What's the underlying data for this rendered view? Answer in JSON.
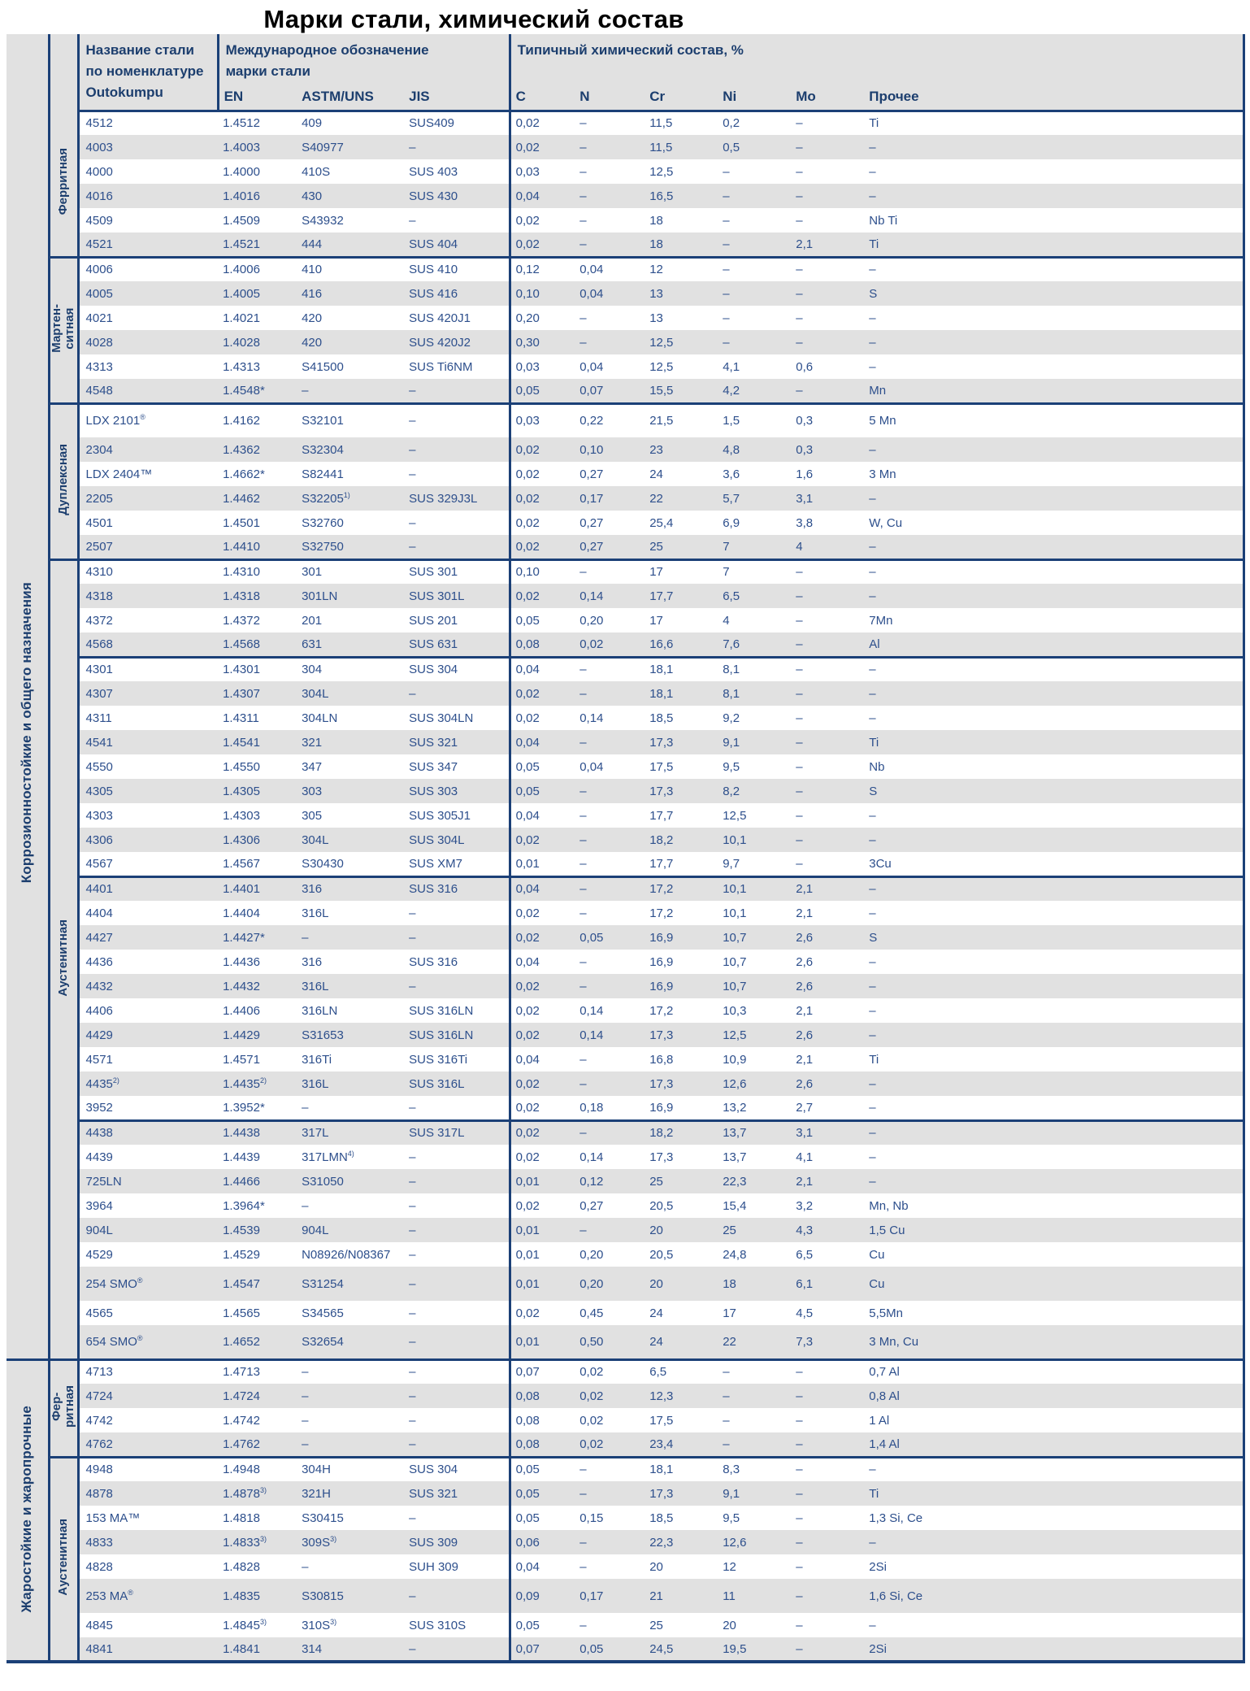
{
  "title": "Марки стали, химический состав",
  "header": {
    "name_l1": "Название стали",
    "name_l2": "по номенклатуре",
    "name_l3": "Outokumpu",
    "intl_l1": "Международное обозначение",
    "intl_l2": "марки стали",
    "chem_title": "Типичный химический состав, %",
    "cols": {
      "en": "EN",
      "astm": "ASTM/UNS",
      "jis": "JIS",
      "c": "C",
      "n": "N",
      "cr": "Cr",
      "ni": "Ni",
      "mo": "Mo",
      "other": "Прочее"
    }
  },
  "groups": [
    {
      "label": "Коррозионностойкие и общего назначения",
      "subgroups": [
        {
          "label": "Ферритная",
          "blocks": [
            [
              [
                "4512",
                "1.4512",
                "409",
                "SUS409",
                "0,02",
                "–",
                "11,5",
                "0,2",
                "–",
                "Ti"
              ],
              [
                "4003",
                "1.4003",
                "S40977",
                "–",
                "0,02",
                "–",
                "11,5",
                "0,5",
                "–",
                "–"
              ],
              [
                "4000",
                "1.4000",
                "410S",
                "SUS 403",
                "0,03",
                "–",
                "12,5",
                "–",
                "–",
                "–"
              ],
              [
                "4016",
                "1.4016",
                "430",
                "SUS 430",
                "0,04",
                "–",
                "16,5",
                "–",
                "–",
                "–"
              ],
              [
                "4509",
                "1.4509",
                "S43932",
                "–",
                "0,02",
                "–",
                "18",
                "–",
                "–",
                "Nb Ti"
              ],
              [
                "4521",
                "1.4521",
                "444",
                "SUS 404",
                "0,02",
                "–",
                "18",
                "–",
                "2,1",
                "Ti"
              ]
            ]
          ]
        },
        {
          "label": "Мартен-\nситная",
          "blocks": [
            [
              [
                "4006",
                "1.4006",
                "410",
                "SUS 410",
                "0,12",
                "0,04",
                "12",
                "–",
                "–",
                "–"
              ],
              [
                "4005",
                "1.4005",
                "416",
                "SUS 416",
                "0,10",
                "0,04",
                "13",
                "–",
                "–",
                "S"
              ],
              [
                "4021",
                "1.4021",
                "420",
                "SUS 420J1",
                "0,20",
                "–",
                "13",
                "–",
                "–",
                "–"
              ],
              [
                "4028",
                "1.4028",
                "420",
                "SUS 420J2",
                "0,30",
                "–",
                "12,5",
                "–",
                "–",
                "–"
              ],
              [
                "4313",
                "1.4313",
                "S41500",
                "SUS Ti6NM",
                "0,03",
                "0,04",
                "12,5",
                "4,1",
                "0,6",
                "–"
              ],
              [
                "4548",
                "1.4548*",
                "–",
                "–",
                "0,05",
                "0,07",
                "15,5",
                "4,2",
                "–",
                "Mn"
              ]
            ]
          ]
        },
        {
          "label": "Дуплексная",
          "blocks": [
            [
              [
                "LDX 2101|®",
                "1.4162",
                "S32101",
                "–",
                "0,03",
                "0,22",
                "21,5",
                "1,5",
                "0,3",
                "5 Mn"
              ],
              [
                "2304",
                "1.4362",
                "S32304",
                "–",
                "0,02",
                "0,10",
                "23",
                "4,8",
                "0,3",
                "–"
              ],
              [
                "LDX 2404™",
                "1.4662*",
                "S82441",
                "–",
                "0,02",
                "0,27",
                "24",
                "3,6",
                "1,6",
                "3 Mn"
              ],
              [
                "2205",
                "1.4462",
                "S32205|1)",
                "SUS 329J3L",
                "0,02",
                "0,17",
                "22",
                "5,7",
                "3,1",
                "–"
              ],
              [
                "4501",
                "1.4501",
                "S32760",
                "–",
                "0,02",
                "0,27",
                "25,4",
                "6,9",
                "3,8",
                "W, Cu"
              ],
              [
                "2507",
                "1.4410",
                "S32750",
                "–",
                "0,02",
                "0,27",
                "25",
                "7",
                "4",
                "–"
              ]
            ]
          ]
        },
        {
          "label": "Аустенитная",
          "blocks": [
            [
              [
                "4310",
                "1.4310",
                "301",
                "SUS 301",
                "0,10",
                "–",
                "17",
                "7",
                "–",
                "–"
              ],
              [
                "4318",
                "1.4318",
                "301LN",
                "SUS 301L",
                "0,02",
                "0,14",
                "17,7",
                "6,5",
                "–",
                "–"
              ],
              [
                "4372",
                "1.4372",
                "201",
                "SUS 201",
                "0,05",
                "0,20",
                "17",
                "4",
                "–",
                "7Mn"
              ],
              [
                "4568",
                "1.4568",
                "631",
                "SUS 631",
                "0,08",
                "0,02",
                "16,6",
                "7,6",
                "–",
                "Al"
              ]
            ],
            [
              [
                "4301",
                "1.4301",
                "304",
                "SUS 304",
                "0,04",
                "–",
                "18,1",
                "8,1",
                "–",
                "–"
              ],
              [
                "4307",
                "1.4307",
                "304L",
                "–",
                "0,02",
                "–",
                "18,1",
                "8,1",
                "–",
                "–"
              ],
              [
                "4311",
                "1.4311",
                "304LN",
                "SUS 304LN",
                "0,02",
                "0,14",
                "18,5",
                "9,2",
                "–",
                "–"
              ],
              [
                "4541",
                "1.4541",
                "321",
                "SUS 321",
                "0,04",
                "–",
                "17,3",
                "9,1",
                "–",
                "Ti"
              ],
              [
                "4550",
                "1.4550",
                "347",
                "SUS 347",
                "0,05",
                "0,04",
                "17,5",
                "9,5",
                "–",
                "Nb"
              ],
              [
                "4305",
                "1.4305",
                "303",
                "SUS 303",
                "0,05",
                "–",
                "17,3",
                "8,2",
                "–",
                "S"
              ],
              [
                "4303",
                "1.4303",
                "305",
                "SUS 305J1",
                "0,04",
                "–",
                "17,7",
                "12,5",
                "–",
                "–"
              ],
              [
                "4306",
                "1.4306",
                "304L",
                "SUS 304L",
                "0,02",
                "–",
                "18,2",
                "10,1",
                "–",
                "–"
              ],
              [
                "4567",
                "1.4567",
                "S30430",
                "SUS XM7",
                "0,01",
                "–",
                "17,7",
                "9,7",
                "–",
                "3Cu"
              ]
            ],
            [
              [
                "4401",
                "1.4401",
                "316",
                "SUS 316",
                "0,04",
                "–",
                "17,2",
                "10,1",
                "2,1",
                "–"
              ],
              [
                "4404",
                "1.4404",
                "316L",
                "–",
                "0,02",
                "–",
                "17,2",
                "10,1",
                "2,1",
                "–"
              ],
              [
                "4427",
                "1.4427*",
                "–",
                "–",
                "0,02",
                "0,05",
                "16,9",
                "10,7",
                "2,6",
                "S"
              ],
              [
                "4436",
                "1.4436",
                "316",
                "SUS 316",
                "0,04",
                "–",
                "16,9",
                "10,7",
                "2,6",
                "–"
              ],
              [
                "4432",
                "1.4432",
                "316L",
                "–",
                "0,02",
                "–",
                "16,9",
                "10,7",
                "2,6",
                "–"
              ],
              [
                "4406",
                "1.4406",
                "316LN",
                "SUS 316LN",
                "0,02",
                "0,14",
                "17,2",
                "10,3",
                "2,1",
                "–"
              ],
              [
                "4429",
                "1.4429",
                "S31653",
                "SUS 316LN",
                "0,02",
                "0,14",
                "17,3",
                "12,5",
                "2,6",
                "–"
              ],
              [
                "4571",
                "1.4571",
                "316Ti",
                "SUS 316Ti",
                "0,04",
                "–",
                "16,8",
                "10,9",
                "2,1",
                "Ti"
              ],
              [
                "4435|2)",
                "1.4435|2)",
                "316L",
                "SUS 316L",
                "0,02",
                "–",
                "17,3",
                "12,6",
                "2,6",
                "–"
              ],
              [
                "3952",
                "1.3952*",
                "–",
                "–",
                "0,02",
                "0,18",
                "16,9",
                "13,2",
                "2,7",
                "–"
              ]
            ],
            [
              [
                "4438",
                "1.4438",
                "317L",
                "SUS 317L",
                "0,02",
                "–",
                "18,2",
                "13,7",
                "3,1",
                "–"
              ],
              [
                "4439",
                "1.4439",
                "317LMN|4)",
                "–",
                "0,02",
                "0,14",
                "17,3",
                "13,7",
                "4,1",
                "–"
              ],
              [
                "725LN",
                "1.4466",
                "S31050",
                "–",
                "0,01",
                "0,12",
                "25",
                "22,3",
                "2,1",
                "–"
              ],
              [
                "3964",
                "1.3964*",
                "–",
                "–",
                "0,02",
                "0,27",
                "20,5",
                "15,4",
                "3,2",
                "Mn, Nb"
              ],
              [
                "904L",
                "1.4539",
                "904L",
                "–",
                "0,01",
                "–",
                "20",
                "25",
                "4,3",
                "1,5 Cu"
              ],
              [
                "4529",
                "1.4529",
                "N08926/N08367",
                "–",
                "0,01",
                "0,20",
                "20,5",
                "24,8",
                "6,5",
                "Cu"
              ],
              [
                "254 SMO|®",
                "1.4547",
                "S31254",
                "–",
                "0,01",
                "0,20",
                "20",
                "18",
                "6,1",
                "Cu"
              ],
              [
                "4565",
                "1.4565",
                "S34565",
                "–",
                "0,02",
                "0,45",
                "24",
                "17",
                "4,5",
                "5,5Mn"
              ],
              [
                "654 SMO|®",
                "1.4652",
                "S32654",
                "–",
                "0,01",
                "0,50",
                "24",
                "22",
                "7,3",
                "3 Mn, Cu"
              ]
            ]
          ]
        }
      ]
    },
    {
      "label": "Жаростойкие и жаропрочные",
      "subgroups": [
        {
          "label": "Фер-\nритная",
          "blocks": [
            [
              [
                "4713",
                "1.4713",
                "–",
                "–",
                "0,07",
                "0,02",
                "6,5",
                "–",
                "–",
                "0,7 Al"
              ],
              [
                "4724",
                "1.4724",
                "–",
                "–",
                "0,08",
                "0,02",
                "12,3",
                "–",
                "–",
                "0,8 Al"
              ],
              [
                "4742",
                "1.4742",
                "–",
                "–",
                "0,08",
                "0,02",
                "17,5",
                "–",
                "–",
                "1 Al"
              ],
              [
                "4762",
                "1.4762",
                "–",
                "–",
                "0,08",
                "0,02",
                "23,4",
                "–",
                "–",
                "1,4 Al"
              ]
            ]
          ]
        },
        {
          "label": "Аустенитная",
          "blocks": [
            [
              [
                "4948",
                "1.4948",
                "304H",
                "SUS 304",
                "0,05",
                "–",
                "18,1",
                "8,3",
                "–",
                "–"
              ],
              [
                "4878",
                "1.4878|3)",
                "321H",
                "SUS 321",
                "0,05",
                "–",
                "17,3",
                "9,1",
                "–",
                "Ti"
              ],
              [
                "153 MA™",
                "1.4818",
                "S30415",
                "–",
                "0,05",
                "0,15",
                "18,5",
                "9,5",
                "–",
                "1,3 Si, Ce"
              ],
              [
                "4833",
                "1.4833|3)",
                "309S|3)",
                "SUS 309",
                "0,06",
                "–",
                "22,3",
                "12,6",
                "–",
                "–"
              ],
              [
                "4828",
                "1.4828",
                "–",
                "SUH 309",
                "0,04",
                "–",
                "20",
                "12",
                "–",
                "2Si"
              ],
              [
                "253 MA|®",
                "1.4835",
                "S30815",
                "–",
                "0,09",
                "0,17",
                "21",
                "11",
                "–",
                "1,6 Si, Ce"
              ],
              [
                "4845",
                "1.4845|3)",
                "310S|3)",
                "SUS 310S",
                "0,05",
                "–",
                "25",
                "20",
                "–",
                "–"
              ],
              [
                "4841",
                "1.4841",
                "314",
                "–",
                "0,07",
                "0,05",
                "24,5",
                "19,5",
                "–",
                "2Si"
              ]
            ]
          ]
        }
      ]
    }
  ]
}
